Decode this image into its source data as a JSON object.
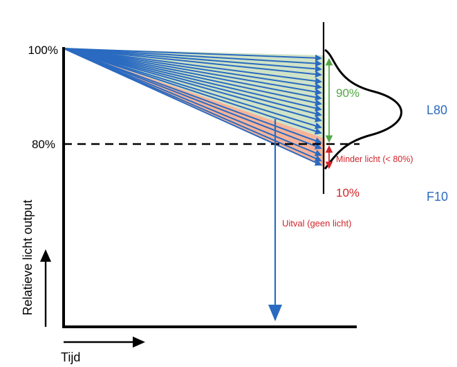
{
  "labels": {
    "y_100": "100%",
    "y_80": "80%",
    "pct_90": "90%",
    "pct_10": "10%",
    "l80": "L80",
    "f10": "F10",
    "minder_licht": "Minder licht (< 80%)",
    "uitval": "Uitval (geen licht)",
    "y_axis_title": "Relatieve licht output",
    "x_axis_title": "Tijd"
  },
  "colors": {
    "arrow_blue": "#2a6ac0",
    "green_fill": "#cfe3c7",
    "salmon_fill": "#f5b49a",
    "green_text": "#53a644",
    "red_text": "#d2232a",
    "blue_text": "#2a6ac0",
    "axis": "#000000"
  },
  "diagram": {
    "green_arrow_endpoints_y": [
      84,
      92,
      100,
      108,
      118,
      126,
      134,
      142,
      150,
      158,
      166,
      174,
      184,
      192
    ],
    "salmon_arrow_endpoints_y": [
      206,
      214,
      224,
      232,
      238
    ]
  }
}
